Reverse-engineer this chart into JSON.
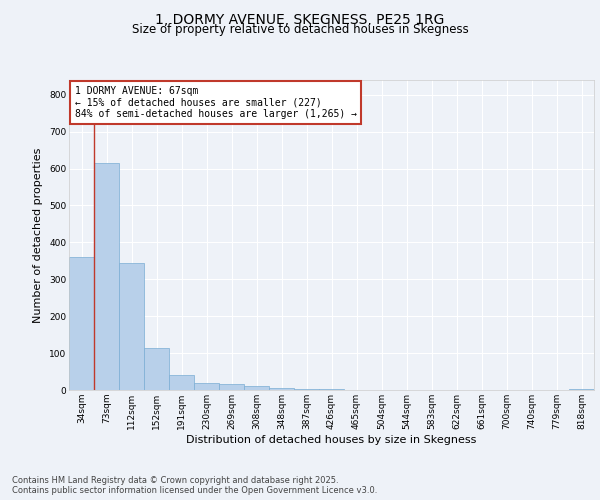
{
  "title": "1, DORMY AVENUE, SKEGNESS, PE25 1RG",
  "subtitle": "Size of property relative to detached houses in Skegness",
  "xlabel": "Distribution of detached houses by size in Skegness",
  "ylabel": "Number of detached properties",
  "footer_line1": "Contains HM Land Registry data © Crown copyright and database right 2025.",
  "footer_line2": "Contains public sector information licensed under the Open Government Licence v3.0.",
  "bins": [
    "34sqm",
    "73sqm",
    "112sqm",
    "152sqm",
    "191sqm",
    "230sqm",
    "269sqm",
    "308sqm",
    "348sqm",
    "387sqm",
    "426sqm",
    "465sqm",
    "504sqm",
    "544sqm",
    "583sqm",
    "622sqm",
    "661sqm",
    "700sqm",
    "740sqm",
    "779sqm",
    "818sqm"
  ],
  "values": [
    360,
    615,
    345,
    115,
    42,
    20,
    15,
    10,
    5,
    3,
    2,
    1,
    1,
    0,
    0,
    0,
    0,
    0,
    0,
    0,
    3
  ],
  "bar_color": "#b8d0ea",
  "bar_edge_color": "#7aadd4",
  "property_line_color": "#c0392b",
  "annotation_text": "1 DORMY AVENUE: 67sqm\n← 15% of detached houses are smaller (227)\n84% of semi-detached houses are larger (1,265) →",
  "annotation_box_color": "#ffffff",
  "annotation_box_edge_color": "#c0392b",
  "ylim": [
    0,
    840
  ],
  "yticks": [
    0,
    100,
    200,
    300,
    400,
    500,
    600,
    700,
    800
  ],
  "bg_color": "#eef2f8",
  "plot_bg_color": "#eef2f8",
  "grid_color": "#ffffff",
  "title_fontsize": 10,
  "subtitle_fontsize": 8.5,
  "ylabel_fontsize": 8,
  "xlabel_fontsize": 8,
  "tick_fontsize": 6.5,
  "annotation_fontsize": 7,
  "footer_fontsize": 6
}
